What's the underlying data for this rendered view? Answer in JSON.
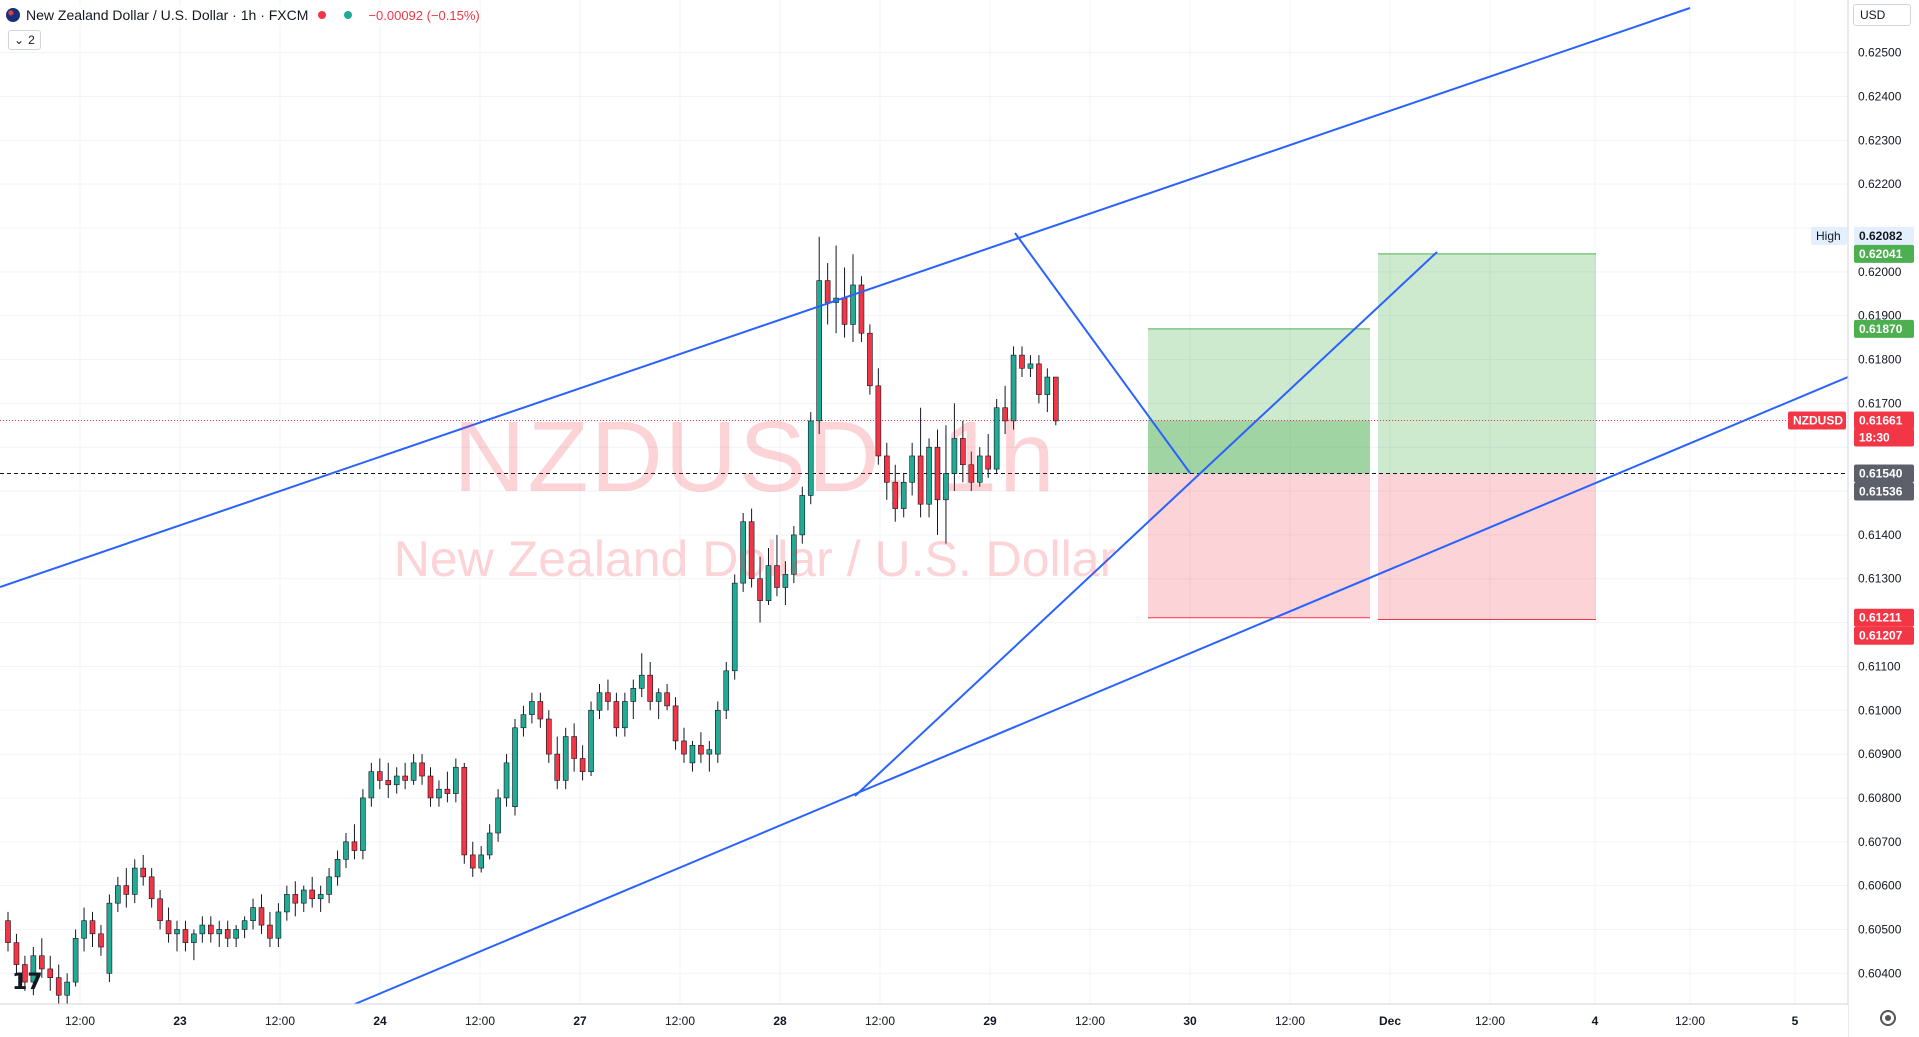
{
  "header": {
    "title": "New Zealand Dollar / U.S. Dollar · 1h · FXCM",
    "change": "−0.00092 (−0.15%)",
    "indicator_count": "2"
  },
  "currency": "USD",
  "watermark": {
    "symbol": "NZDUSD, 1h",
    "description": "New Zealand Dollar / U.S. Dollar"
  },
  "logo": "17",
  "colors": {
    "up": "#22ab94",
    "down": "#f23645",
    "trendline": "#2962ff",
    "profit_zone": "rgba(76,175,80,0.28)",
    "loss_zone": "rgba(242,54,69,0.22)"
  },
  "price_axis": {
    "ticks": [
      "0.62500",
      "0.62400",
      "0.62300",
      "0.62200",
      "0.62000",
      "0.61900",
      "0.61800",
      "0.61700",
      "0.61400",
      "0.61300",
      "0.61100",
      "0.61000",
      "0.60900",
      "0.60800",
      "0.60700",
      "0.60600",
      "0.60500",
      "0.60400"
    ],
    "tick_values": [
      0.625,
      0.624,
      0.623,
      0.622,
      0.62,
      0.619,
      0.618,
      0.617,
      0.614,
      0.613,
      0.611,
      0.61,
      0.609,
      0.608,
      0.607,
      0.606,
      0.605,
      0.604
    ]
  },
  "price_labels": [
    {
      "text": "High",
      "kind": "text"
    },
    {
      "text": "0.62082",
      "kind": "high"
    },
    {
      "text": "0.62041",
      "kind": "green",
      "value": 0.62041
    },
    {
      "text": "0.61870",
      "kind": "green",
      "value": 0.6187
    },
    {
      "text": "NZDUSD",
      "kind": "symbol"
    },
    {
      "text": "0.61661",
      "kind": "red",
      "value": 0.61661
    },
    {
      "text": "18:30",
      "kind": "red-sub"
    },
    {
      "text": "0.61540",
      "kind": "gray",
      "value": 0.6154
    },
    {
      "text": "0.61536",
      "kind": "gray-sub"
    },
    {
      "text": "0.61211",
      "kind": "red",
      "value": 0.61211
    },
    {
      "text": "0.61207",
      "kind": "red-sub"
    }
  ],
  "time_axis": {
    "labels": [
      "12:00",
      "23",
      "12:00",
      "24",
      "12:00",
      "27",
      "12:00",
      "28",
      "12:00",
      "29",
      "12:00",
      "30",
      "12:00",
      "Dec",
      "12:00",
      "4",
      "12:00",
      "5"
    ],
    "bold": [
      "23",
      "24",
      "27",
      "28",
      "29",
      "30",
      "Dec",
      "4",
      "5"
    ]
  },
  "chart_data": {
    "type": "candlestick",
    "symbol": "NZDUSD",
    "timeframe": "1h",
    "ylim": [
      0.6033,
      0.6262
    ],
    "last_price": 0.61661,
    "countdown": "18:30",
    "high": 0.62082,
    "long_position_1": {
      "entry": 0.6154,
      "target": 0.6187,
      "stop": 0.61211
    },
    "long_position_2": {
      "entry": 0.6154,
      "target": 0.62041,
      "stop": 0.61207
    },
    "trendlines_note": "ascending channel with inner wedge lines",
    "candles": [
      [
        0.6052,
        0.6054,
        0.6045,
        0.6047
      ],
      [
        0.6047,
        0.6049,
        0.604,
        0.6042
      ],
      [
        0.6042,
        0.6044,
        0.6036,
        0.6038
      ],
      [
        0.6038,
        0.6046,
        0.6035,
        0.6044
      ],
      [
        0.6044,
        0.6048,
        0.6039,
        0.6041
      ],
      [
        0.6041,
        0.6044,
        0.6036,
        0.6039
      ],
      [
        0.6039,
        0.6042,
        0.6033,
        0.6035
      ],
      [
        0.6035,
        0.604,
        0.6033,
        0.6038
      ],
      [
        0.6038,
        0.605,
        0.6037,
        0.6048
      ],
      [
        0.6048,
        0.6055,
        0.6045,
        0.6052
      ],
      [
        0.6052,
        0.6054,
        0.6046,
        0.6049
      ],
      [
        0.6049,
        0.6051,
        0.6044,
        0.6046
      ],
      [
        0.604,
        0.6058,
        0.6038,
        0.6056
      ],
      [
        0.6056,
        0.6062,
        0.6054,
        0.606
      ],
      [
        0.606,
        0.6064,
        0.6055,
        0.6058
      ],
      [
        0.6058,
        0.6066,
        0.6056,
        0.6064
      ],
      [
        0.6064,
        0.6067,
        0.606,
        0.6062
      ],
      [
        0.6062,
        0.6064,
        0.6055,
        0.6057
      ],
      [
        0.6057,
        0.6059,
        0.605,
        0.6052
      ],
      [
        0.6052,
        0.6055,
        0.6047,
        0.6049
      ],
      [
        0.6049,
        0.6052,
        0.6045,
        0.605
      ],
      [
        0.605,
        0.6052,
        0.6045,
        0.6047
      ],
      [
        0.6047,
        0.605,
        0.6043,
        0.6049
      ],
      [
        0.6049,
        0.6053,
        0.6047,
        0.6051
      ],
      [
        0.6051,
        0.6053,
        0.6047,
        0.6049
      ],
      [
        0.6049,
        0.6052,
        0.6046,
        0.605
      ],
      [
        0.605,
        0.6052,
        0.6046,
        0.6048
      ],
      [
        0.6048,
        0.6051,
        0.6046,
        0.605
      ],
      [
        0.605,
        0.6053,
        0.6048,
        0.6052
      ],
      [
        0.6052,
        0.6057,
        0.605,
        0.6055
      ],
      [
        0.6055,
        0.6058,
        0.6049,
        0.6051
      ],
      [
        0.6051,
        0.6054,
        0.6046,
        0.6048
      ],
      [
        0.6048,
        0.6056,
        0.6046,
        0.6054
      ],
      [
        0.6054,
        0.606,
        0.6052,
        0.6058
      ],
      [
        0.6058,
        0.6061,
        0.6053,
        0.6056
      ],
      [
        0.6056,
        0.606,
        0.6054,
        0.6059
      ],
      [
        0.6059,
        0.6062,
        0.6055,
        0.6057
      ],
      [
        0.6057,
        0.606,
        0.6054,
        0.6058
      ],
      [
        0.6058,
        0.6064,
        0.6056,
        0.6062
      ],
      [
        0.6062,
        0.6068,
        0.606,
        0.6066
      ],
      [
        0.6066,
        0.6072,
        0.6064,
        0.607
      ],
      [
        0.607,
        0.6074,
        0.6066,
        0.6068
      ],
      [
        0.6068,
        0.6082,
        0.6066,
        0.608
      ],
      [
        0.608,
        0.6088,
        0.6078,
        0.6086
      ],
      [
        0.6086,
        0.6089,
        0.6082,
        0.6084
      ],
      [
        0.6084,
        0.6088,
        0.608,
        0.6083
      ],
      [
        0.6083,
        0.6087,
        0.6081,
        0.6085
      ],
      [
        0.6085,
        0.6088,
        0.6082,
        0.6084
      ],
      [
        0.6084,
        0.609,
        0.6083,
        0.6088
      ],
      [
        0.6088,
        0.609,
        0.6083,
        0.6085
      ],
      [
        0.6085,
        0.6087,
        0.6078,
        0.608
      ],
      [
        0.608,
        0.6084,
        0.6078,
        0.6082
      ],
      [
        0.6082,
        0.6086,
        0.6079,
        0.6081
      ],
      [
        0.6081,
        0.6089,
        0.6079,
        0.6087
      ],
      [
        0.6087,
        0.6088,
        0.6065,
        0.6067
      ],
      [
        0.6067,
        0.607,
        0.6062,
        0.6064
      ],
      [
        0.6064,
        0.6069,
        0.6063,
        0.6067
      ],
      [
        0.6067,
        0.6074,
        0.6066,
        0.6072
      ],
      [
        0.6072,
        0.6082,
        0.607,
        0.608
      ],
      [
        0.608,
        0.609,
        0.6078,
        0.6088
      ],
      [
        0.6078,
        0.6098,
        0.6076,
        0.6096
      ],
      [
        0.6096,
        0.6101,
        0.6094,
        0.6099
      ],
      [
        0.6099,
        0.6104,
        0.6097,
        0.6102
      ],
      [
        0.6102,
        0.6104,
        0.6096,
        0.6098
      ],
      [
        0.6098,
        0.61,
        0.6088,
        0.609
      ],
      [
        0.609,
        0.6094,
        0.6082,
        0.6084
      ],
      [
        0.6084,
        0.6096,
        0.6082,
        0.6094
      ],
      [
        0.6094,
        0.6097,
        0.6086,
        0.6089
      ],
      [
        0.6089,
        0.6092,
        0.6084,
        0.6086
      ],
      [
        0.6086,
        0.6102,
        0.6085,
        0.61
      ],
      [
        0.61,
        0.6106,
        0.6098,
        0.6104
      ],
      [
        0.6104,
        0.6107,
        0.61,
        0.6102
      ],
      [
        0.6102,
        0.6104,
        0.6094,
        0.6096
      ],
      [
        0.6096,
        0.6104,
        0.6094,
        0.6102
      ],
      [
        0.6102,
        0.6107,
        0.6098,
        0.6105
      ],
      [
        0.6105,
        0.6113,
        0.6103,
        0.6108
      ],
      [
        0.6108,
        0.6111,
        0.61,
        0.6102
      ],
      [
        0.6102,
        0.6105,
        0.6098,
        0.6104
      ],
      [
        0.6104,
        0.6106,
        0.61,
        0.6101
      ],
      [
        0.6101,
        0.6103,
        0.6091,
        0.6093
      ],
      [
        0.6093,
        0.6096,
        0.6088,
        0.609
      ],
      [
        0.6088,
        0.6093,
        0.6086,
        0.6092
      ],
      [
        0.6092,
        0.6095,
        0.6088,
        0.609
      ],
      [
        0.609,
        0.6093,
        0.6086,
        0.6091
      ],
      [
        0.609,
        0.6102,
        0.6088,
        0.61
      ],
      [
        0.61,
        0.6111,
        0.6098,
        0.6109
      ],
      [
        0.6109,
        0.6131,
        0.6107,
        0.6129
      ],
      [
        0.6129,
        0.6145,
        0.6127,
        0.6143
      ],
      [
        0.6143,
        0.6146,
        0.6128,
        0.613
      ],
      [
        0.613,
        0.6135,
        0.612,
        0.6125
      ],
      [
        0.6125,
        0.6137,
        0.6124,
        0.6133
      ],
      [
        0.6133,
        0.614,
        0.6126,
        0.6128
      ],
      [
        0.6128,
        0.6134,
        0.6124,
        0.6131
      ],
      [
        0.6131,
        0.6142,
        0.6129,
        0.614
      ],
      [
        0.614,
        0.6151,
        0.6138,
        0.6149
      ],
      [
        0.6149,
        0.6168,
        0.6147,
        0.6166
      ],
      [
        0.6166,
        0.6208,
        0.6163,
        0.6198
      ],
      [
        0.6198,
        0.6202,
        0.6188,
        0.6193
      ],
      [
        0.6193,
        0.6206,
        0.6186,
        0.6194
      ],
      [
        0.6194,
        0.6201,
        0.6185,
        0.6188
      ],
      [
        0.6188,
        0.6204,
        0.6184,
        0.6197
      ],
      [
        0.6197,
        0.6199,
        0.6184,
        0.6186
      ],
      [
        0.6186,
        0.6188,
        0.6172,
        0.6174
      ],
      [
        0.6174,
        0.6178,
        0.6156,
        0.6158
      ],
      [
        0.6158,
        0.6161,
        0.6148,
        0.6152
      ],
      [
        0.6152,
        0.6156,
        0.6143,
        0.6146
      ],
      [
        0.6146,
        0.6154,
        0.6144,
        0.6152
      ],
      [
        0.6152,
        0.6161,
        0.6149,
        0.6158
      ],
      [
        0.6158,
        0.6169,
        0.6144,
        0.6147
      ],
      [
        0.6147,
        0.6162,
        0.6144,
        0.616
      ],
      [
        0.616,
        0.6164,
        0.614,
        0.6148
      ],
      [
        0.6148,
        0.6165,
        0.6138,
        0.6154
      ],
      [
        0.6154,
        0.617,
        0.615,
        0.6162
      ],
      [
        0.6162,
        0.6166,
        0.6152,
        0.6156
      ],
      [
        0.6156,
        0.6159,
        0.615,
        0.6152
      ],
      [
        0.6152,
        0.616,
        0.6151,
        0.6158
      ],
      [
        0.6158,
        0.6163,
        0.6153,
        0.6155
      ],
      [
        0.6155,
        0.6171,
        0.6154,
        0.6169
      ],
      [
        0.6169,
        0.6174,
        0.6163,
        0.6166
      ],
      [
        0.6166,
        0.6183,
        0.6164,
        0.6181
      ],
      [
        0.6181,
        0.6183,
        0.6176,
        0.6178
      ],
      [
        0.6178,
        0.6181,
        0.6176,
        0.6179
      ],
      [
        0.6179,
        0.6181,
        0.617,
        0.6172
      ],
      [
        0.6172,
        0.6178,
        0.6168,
        0.6176
      ],
      [
        0.6176,
        0.6176,
        0.6165,
        0.6166
      ]
    ]
  }
}
